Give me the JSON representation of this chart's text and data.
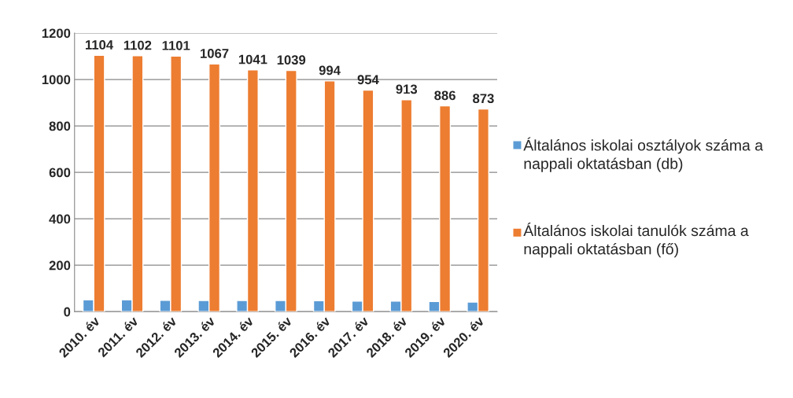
{
  "chart_data": {
    "type": "bar",
    "categories": [
      "2010. év",
      "2011. év",
      "2012. év",
      "2013. év",
      "2014. év",
      "2015. év",
      "2016. év",
      "2017. év",
      "2018. év",
      "2019. év",
      "2020. év"
    ],
    "series": [
      {
        "name": "Általános iskolai osztályok száma a nappali oktatásban (db)",
        "color": "#5b9bd5",
        "values": [
          51,
          51,
          49,
          48,
          48,
          48,
          47,
          45,
          45,
          44,
          41
        ]
      },
      {
        "name": "Általános iskolai tanulók száma a nappali oktatásban (fő)",
        "color": "#ed7d31",
        "values": [
          1104,
          1102,
          1101,
          1067,
          1041,
          1039,
          994,
          954,
          913,
          886,
          873
        ],
        "value_labels": [
          "1104",
          "1102",
          "1101",
          "1067",
          "1041",
          "1039",
          "994",
          "954",
          "913",
          "886",
          "873"
        ]
      }
    ],
    "ylim": [
      0,
      1200
    ],
    "yticks": [
      0,
      200,
      400,
      600,
      800,
      1000,
      1200
    ],
    "grid": "y",
    "legend": "right"
  }
}
